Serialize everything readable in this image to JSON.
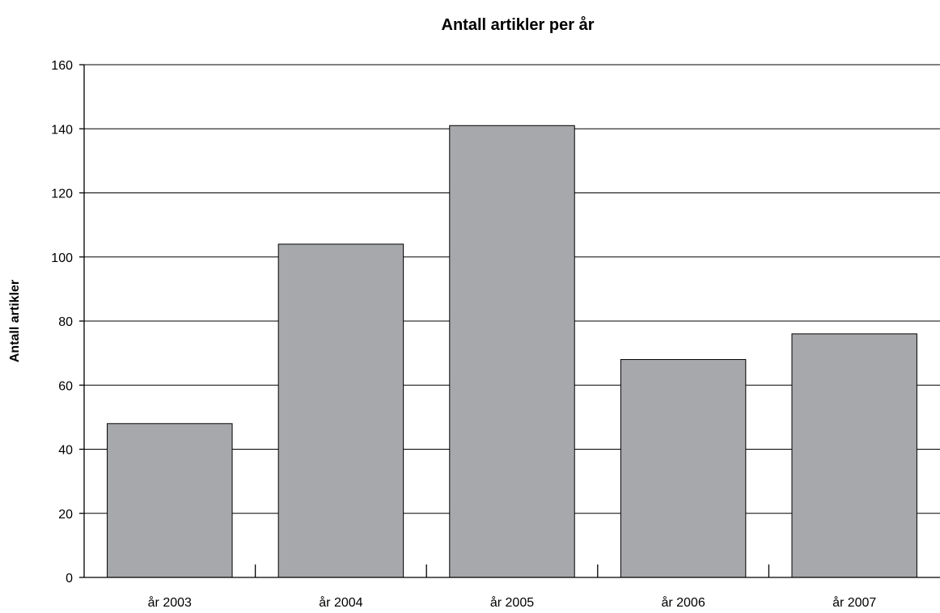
{
  "chart_data": {
    "type": "bar",
    "title": "Antall artikler per år",
    "xlabel": "",
    "ylabel": "Antall artikler",
    "categories": [
      "år 2003",
      "år 2004",
      "år 2005",
      "år 2006",
      "år 2007"
    ],
    "values": [
      48,
      104,
      141,
      68,
      76
    ],
    "ylim": [
      0,
      160
    ],
    "yticks": [
      0,
      20,
      40,
      60,
      80,
      100,
      120,
      140,
      160
    ],
    "grid": true,
    "legend": "none",
    "colors": {
      "bar": "#a7a8ab",
      "outline": "#000000"
    }
  }
}
